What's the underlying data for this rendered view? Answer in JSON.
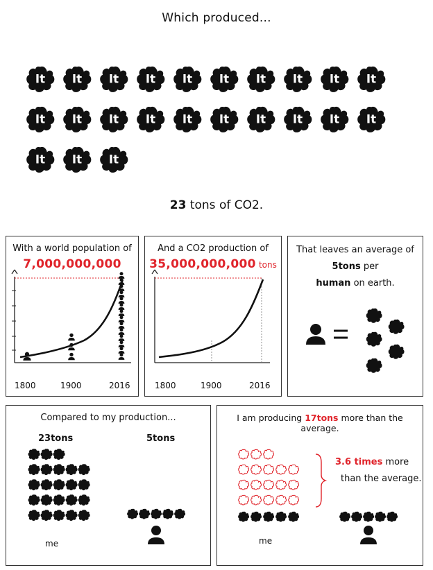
{
  "header": {
    "title": "Which produced..."
  },
  "blobs": {
    "count": 23,
    "label": "It"
  },
  "total": {
    "amount": "23",
    "unit": "tons of CO2."
  },
  "panel_population": {
    "title": "With a world population of",
    "value": "7,000,000,000",
    "ticks": [
      "1800",
      "1900",
      "2016"
    ]
  },
  "panel_co2": {
    "title": "And a CO2 production of",
    "value": "35,000,000,000",
    "unit": "tons",
    "ticks": [
      "1800",
      "1900",
      "2016"
    ]
  },
  "panel_average": {
    "line1": "That leaves an average of",
    "amount": "5tons",
    "per": "per",
    "human": "human",
    "rest": "on earth."
  },
  "panel_compare": {
    "title": "Compared to my production...",
    "left_label": "23tons",
    "right_label": "5tons",
    "me_label": "me"
  },
  "panel_more": {
    "title_prefix": "I am producing",
    "title_value": "17tons",
    "title_suffix": "more than the average.",
    "times": "3.6 times",
    "more": "more",
    "line2": "than the average.",
    "me_label": "me"
  }
}
